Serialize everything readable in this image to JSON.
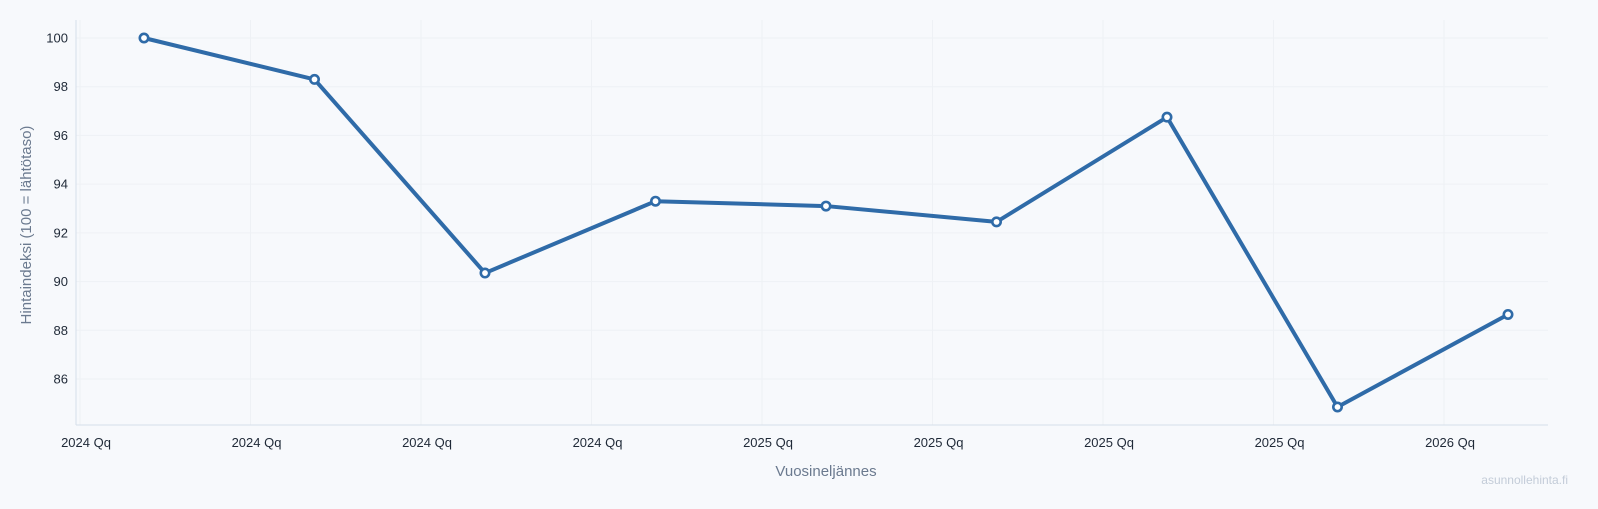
{
  "chart_data": {
    "type": "line",
    "xlabel": "Vuosineljännes",
    "ylabel": "Hintaindeksi (100 = lähtötaso)",
    "x_tick_labels": [
      "2024 Qq",
      "2024 Qq",
      "2024 Qq",
      "2024 Qq",
      "2025 Qq",
      "2025 Qq",
      "2025 Qq",
      "2025 Qq",
      "2026 Qq"
    ],
    "y_ticks": [
      86,
      88,
      90,
      92,
      94,
      96,
      98,
      100
    ],
    "ylim": [
      84.5,
      100.8
    ],
    "grid": true,
    "legend": "none",
    "series": [
      {
        "values": [
          100,
          98.3,
          90.35,
          93.3,
          93.1,
          92.45,
          96.75,
          84.85,
          88.65
        ],
        "color": "#2f6ba8"
      }
    ]
  },
  "watermark": "asunnollehinta.fi",
  "colors": {
    "background": "#f7f9fc",
    "line": "#2f6ba8",
    "grid": "#eef1f5",
    "axis": "#d6deea",
    "tick_text": "#1f2937",
    "axis_title": "#6b7a8f",
    "watermark": "#c3ccd8"
  }
}
